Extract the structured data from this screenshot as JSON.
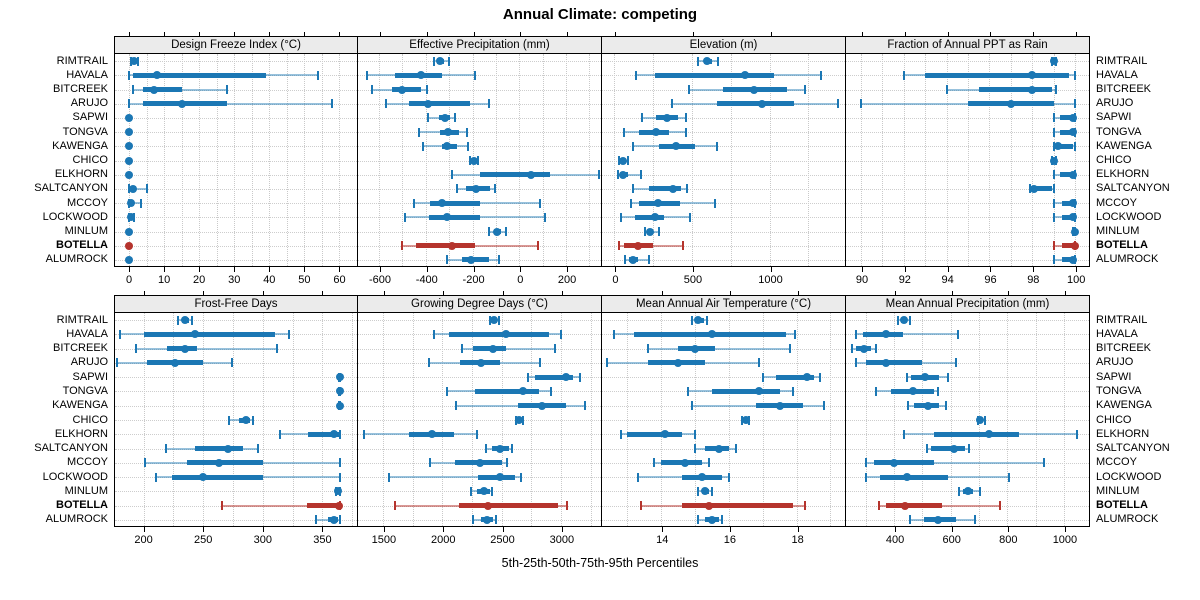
{
  "page": {
    "title": "Annual Climate: competing",
    "footer": "5th-25th-50th-75th-95th Percentiles"
  },
  "colors": {
    "blue": "#1b77b4",
    "blue_light": "rgba(27,119,180,0.45)",
    "red": "#b5342d",
    "red_light": "rgba(181,52,45,0.5)",
    "grid": "#c9c9c9",
    "strip_bg": "#ebebeb"
  },
  "chart_data": {
    "type": "dot-interval",
    "note": "each series value array = [5th,25th,50th,75th,95th] percentiles; dot=median, thick=25th-75th, thin capped line=5th-95th",
    "title": "Annual Climate: competing",
    "xlabel": "5th-25th-50th-75th-95th Percentiles",
    "legend_position": "none",
    "grid": "dotted",
    "sites": [
      "RIMTRAIL",
      "HAVALA",
      "BITCREEK",
      "ARUJO",
      "SAPWI",
      "TONGVA",
      "KAWENGA",
      "CHICO",
      "ELKHORN",
      "SALTCANYON",
      "MCCOY",
      "LOCKWOOD",
      "MINLUM",
      "BOTELLA",
      "ALUMROCK"
    ],
    "highlight_site": "BOTELLA",
    "panels": [
      {
        "title": "Design Freeze Index (°C)",
        "xlim": [
          -4,
          65
        ],
        "ticks": [
          0,
          10,
          20,
          30,
          40,
          50,
          60
        ],
        "grid_step": 5,
        "values": [
          [
            0.5,
            1,
            1.5,
            2,
            2.5
          ],
          [
            0,
            1,
            8,
            39,
            54
          ],
          [
            1,
            4,
            7,
            15,
            28
          ],
          [
            0,
            4,
            15,
            28,
            58
          ],
          [
            0,
            0,
            0,
            0,
            0
          ],
          [
            0,
            0,
            0,
            0,
            0
          ],
          [
            0,
            0,
            0,
            0,
            0
          ],
          [
            0,
            0,
            0,
            0,
            0
          ],
          [
            0,
            0,
            0,
            0,
            0
          ],
          [
            0,
            0.5,
            1,
            2,
            5
          ],
          [
            0,
            0,
            0.5,
            1.5,
            3.5
          ],
          [
            0,
            0,
            0.5,
            1,
            1.5
          ],
          [
            0,
            0,
            0,
            0,
            0
          ],
          [
            0,
            0,
            0,
            0,
            0
          ],
          [
            0,
            0,
            0,
            0,
            0
          ]
        ]
      },
      {
        "title": "Effective Precipitation (mm)",
        "xlim": [
          -690,
          345
        ],
        "ticks": [
          -600,
          -400,
          -200,
          0,
          200
        ],
        "grid_step": 100,
        "values": [
          [
            -365,
            -350,
            -340,
            -320,
            -300
          ],
          [
            -650,
            -530,
            -420,
            -330,
            -190
          ],
          [
            -630,
            -545,
            -500,
            -420,
            -395
          ],
          [
            -570,
            -470,
            -390,
            -210,
            -130
          ],
          [
            -390,
            -345,
            -320,
            -295,
            -275
          ],
          [
            -430,
            -340,
            -305,
            -260,
            -225
          ],
          [
            -410,
            -330,
            -310,
            -265,
            -220
          ],
          [
            -210,
            -200,
            -195,
            -185,
            -175
          ],
          [
            -290,
            -170,
            50,
            130,
            340
          ],
          [
            -265,
            -230,
            -185,
            -125,
            -105
          ],
          [
            -450,
            -380,
            -330,
            -170,
            90
          ],
          [
            -490,
            -385,
            -310,
            -170,
            110
          ],
          [
            -130,
            -110,
            -95,
            -80,
            -55
          ],
          [
            -500,
            -440,
            -290,
            -190,
            80
          ],
          [
            -310,
            -245,
            -205,
            -130,
            -85
          ]
        ]
      },
      {
        "title": "Elevation (m)",
        "xlim": [
          -80,
          1480
        ],
        "ticks": [
          0,
          500,
          1000
        ],
        "grid_step": 250,
        "values": [
          [
            540,
            575,
            600,
            630,
            670
          ],
          [
            140,
            260,
            840,
            1030,
            1330
          ],
          [
            480,
            700,
            900,
            1110,
            1230
          ],
          [
            370,
            660,
            950,
            1160,
            1440
          ],
          [
            180,
            270,
            340,
            410,
            460
          ],
          [
            60,
            160,
            270,
            350,
            460
          ],
          [
            120,
            290,
            400,
            520,
            660
          ],
          [
            30,
            40,
            55,
            70,
            85
          ],
          [
            20,
            35,
            55,
            90,
            170
          ],
          [
            120,
            220,
            380,
            430,
            465
          ],
          [
            110,
            160,
            280,
            420,
            650
          ],
          [
            40,
            130,
            260,
            320,
            490
          ],
          [
            200,
            215,
            230,
            250,
            290
          ],
          [
            30,
            60,
            150,
            250,
            440
          ],
          [
            70,
            95,
            120,
            150,
            220
          ]
        ]
      },
      {
        "title": "Fraction of Annual PPT as Rain",
        "xlim": [
          89.3,
          100.6
        ],
        "ticks": [
          90,
          92,
          94,
          96,
          98,
          100
        ],
        "grid_step": 1,
        "values": [
          [
            98.9,
            99,
            99,
            99,
            99.1
          ],
          [
            92,
            93,
            98,
            99.7,
            100
          ],
          [
            94,
            95.5,
            98,
            98.9,
            99.1
          ],
          [
            90,
            95,
            97,
            99,
            100
          ],
          [
            99,
            99.3,
            99.9,
            100,
            100
          ],
          [
            99,
            99.3,
            99.9,
            100,
            100
          ],
          [
            99,
            99,
            99.2,
            99.9,
            100
          ],
          [
            98.9,
            99,
            99,
            99,
            99.1
          ],
          [
            99,
            99.3,
            99.9,
            100,
            100
          ],
          [
            97.9,
            98,
            98.1,
            98.9,
            99
          ],
          [
            99,
            99.4,
            99.9,
            100,
            100
          ],
          [
            99,
            99.4,
            99.9,
            100,
            100
          ],
          [
            99.9,
            100,
            100,
            100,
            100
          ],
          [
            99,
            99.4,
            100,
            100,
            100
          ],
          [
            99,
            99.4,
            99.9,
            100,
            100
          ]
        ]
      },
      {
        "title": "Frost-Free Days",
        "xlim": [
          176,
          379
        ],
        "ticks": [
          200,
          250,
          300,
          350
        ],
        "grid_step": 25,
        "values": [
          [
            229,
            232,
            235,
            238,
            241
          ],
          [
            180,
            200,
            243,
            310,
            322
          ],
          [
            194,
            220,
            235,
            245,
            312
          ],
          [
            178,
            203,
            226,
            250,
            274
          ],
          [
            364,
            365,
            365,
            365,
            365
          ],
          [
            364,
            365,
            365,
            365,
            365
          ],
          [
            364,
            365,
            365,
            365,
            365
          ],
          [
            272,
            280,
            286,
            289,
            292
          ],
          [
            314,
            338,
            360,
            365,
            365
          ],
          [
            219,
            243,
            271,
            283,
            296
          ],
          [
            201,
            236,
            263,
            300,
            365
          ],
          [
            210,
            224,
            250,
            300,
            365
          ],
          [
            361,
            363,
            363,
            364,
            365
          ],
          [
            266,
            337,
            364,
            365,
            365
          ],
          [
            345,
            355,
            360,
            363,
            365
          ]
        ]
      },
      {
        "title": "Growing Degree Days (°C)",
        "xlim": [
          1290,
          3330
        ],
        "ticks": [
          1500,
          2000,
          2500,
          3000
        ],
        "grid_step": 250,
        "values": [
          [
            2400,
            2420,
            2440,
            2460,
            2475
          ],
          [
            1930,
            2060,
            2540,
            2900,
            3000
          ],
          [
            2170,
            2260,
            2430,
            2540,
            2950
          ],
          [
            1890,
            2150,
            2330,
            2490,
            2820
          ],
          [
            2720,
            2780,
            3040,
            3100,
            3160
          ],
          [
            2040,
            2280,
            2680,
            2820,
            2920
          ],
          [
            2120,
            2640,
            2840,
            3040,
            3200
          ],
          [
            2620,
            2640,
            2650,
            2665,
            2680
          ],
          [
            1340,
            1720,
            1910,
            2100,
            2290
          ],
          [
            2370,
            2420,
            2490,
            2565,
            2590
          ],
          [
            1900,
            2110,
            2320,
            2500,
            2550
          ],
          [
            1550,
            2300,
            2490,
            2610,
            2660
          ],
          [
            2240,
            2290,
            2350,
            2400,
            2420
          ],
          [
            1600,
            2140,
            2390,
            2980,
            3050
          ],
          [
            2260,
            2330,
            2380,
            2430,
            2455
          ]
        ]
      },
      {
        "title": "Mean Annual Air Temperature (°C)",
        "xlim": [
          12.25,
          19.4
        ],
        "ticks": [
          14,
          16,
          18
        ],
        "grid_step": 1,
        "values": [
          [
            14.9,
            15.0,
            15.1,
            15.25,
            15.35
          ],
          [
            12.6,
            13.2,
            15.5,
            17.7,
            17.95
          ],
          [
            13.6,
            14.5,
            15.0,
            15.6,
            17.8
          ],
          [
            12.4,
            13.6,
            14.5,
            15.3,
            16.9
          ],
          [
            17.0,
            17.4,
            18.3,
            18.5,
            18.7
          ],
          [
            14.8,
            15.5,
            16.9,
            17.5,
            17.9
          ],
          [
            14.9,
            16.8,
            17.5,
            18.2,
            18.8
          ],
          [
            16.4,
            16.45,
            16.5,
            16.55,
            16.6
          ],
          [
            12.8,
            13.0,
            14.1,
            14.6,
            15.0
          ],
          [
            15.0,
            15.3,
            15.7,
            16.0,
            16.2
          ],
          [
            13.8,
            14.0,
            14.7,
            15.2,
            15.4
          ],
          [
            13.3,
            14.6,
            15.2,
            15.8,
            16.0
          ],
          [
            15.1,
            15.2,
            15.3,
            15.4,
            15.5
          ],
          [
            13.4,
            14.6,
            15.4,
            17.9,
            18.25
          ],
          [
            15.1,
            15.3,
            15.5,
            15.7,
            15.8
          ]
        ]
      },
      {
        "title": "Mean Annual Precipitation (mm)",
        "xlim": [
          230,
          1085
        ],
        "ticks": [
          400,
          600,
          800,
          1000
        ],
        "grid_step": 100,
        "values": [
          [
            415,
            425,
            435,
            445,
            455
          ],
          [
            265,
            290,
            370,
            430,
            625
          ],
          [
            250,
            265,
            295,
            320,
            335
          ],
          [
            265,
            300,
            370,
            500,
            620
          ],
          [
            445,
            460,
            510,
            560,
            590
          ],
          [
            335,
            390,
            465,
            540,
            555
          ],
          [
            450,
            470,
            520,
            560,
            585
          ],
          [
            695,
            700,
            705,
            712,
            720
          ],
          [
            435,
            540,
            735,
            840,
            1045
          ],
          [
            515,
            530,
            610,
            650,
            665
          ],
          [
            300,
            330,
            400,
            540,
            930
          ],
          [
            300,
            350,
            445,
            590,
            805
          ],
          [
            630,
            645,
            660,
            680,
            705
          ],
          [
            345,
            370,
            440,
            570,
            775
          ],
          [
            455,
            505,
            555,
            620,
            685
          ]
        ]
      }
    ]
  }
}
